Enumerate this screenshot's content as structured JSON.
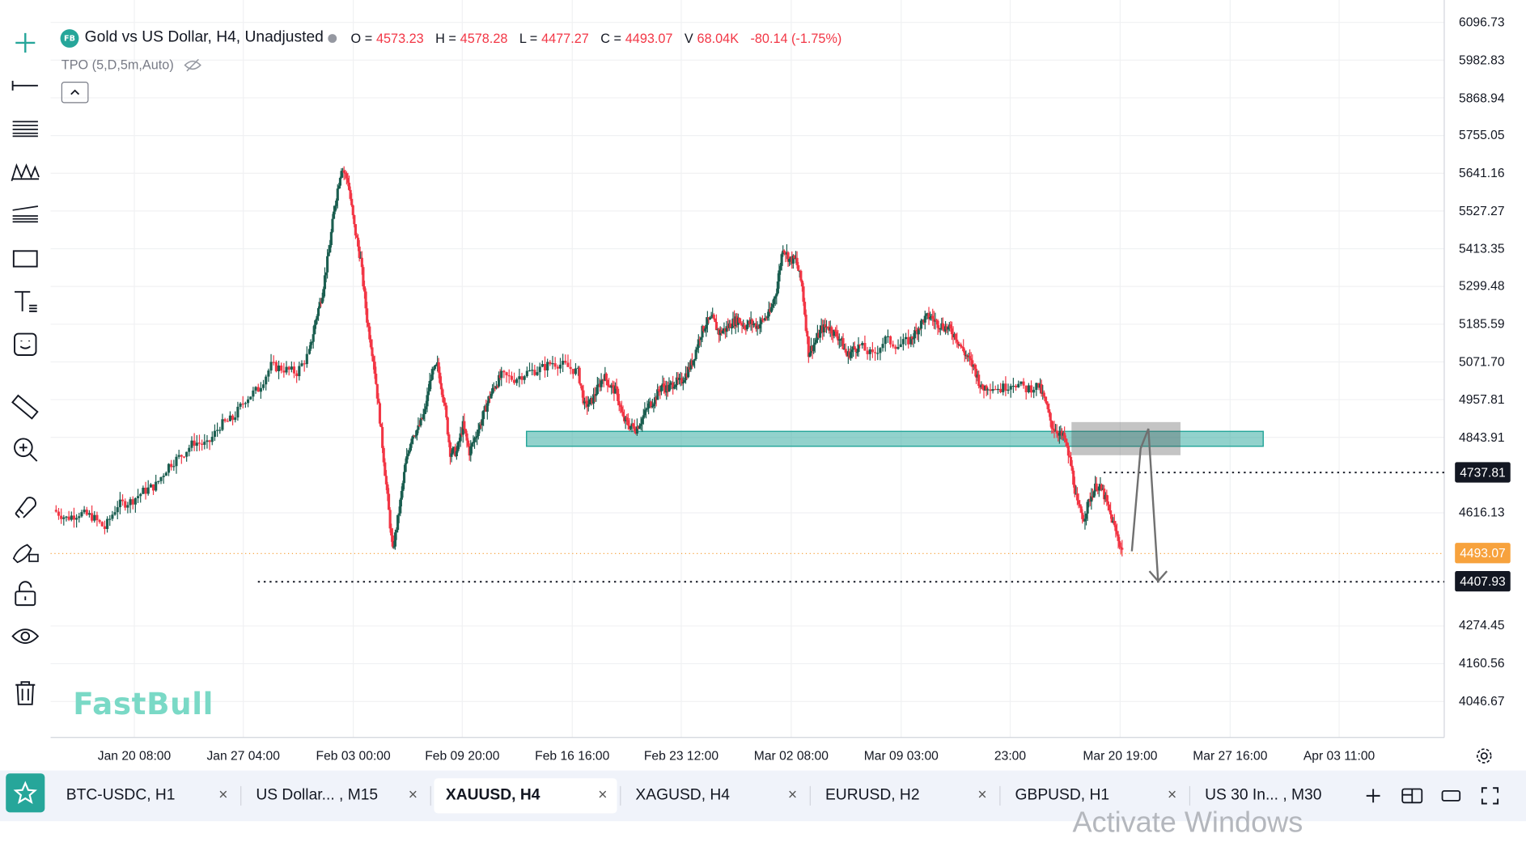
{
  "header": {
    "badge": "FB",
    "title": "Gold vs US Dollar, H4, Unadjusted",
    "ohlc": [
      {
        "key": "O =",
        "value": "4573.23"
      },
      {
        "key": "H =",
        "value": "4578.28"
      },
      {
        "key": "L =",
        "value": "4477.27"
      },
      {
        "key": "C =",
        "value": "4493.07"
      },
      {
        "key": "V",
        "value": "68.04K"
      }
    ],
    "change": "-80.14 (-1.75%)"
  },
  "indicator": {
    "label": "TPO (5,D,5m,Auto)"
  },
  "toolbar_icons": [
    "crosshair-icon",
    "trend-line-icon",
    "fib-lines-icon",
    "pattern-icon",
    "channel-icon",
    "rectangle-icon",
    "text-tool-icon",
    "emoji-icon",
    "ruler-icon",
    "zoom-in-icon",
    "magnet-icon",
    "lock-drawing-icon",
    "lock-icon",
    "eye-icon",
    "trash-icon"
  ],
  "chart_data": {
    "type": "candlestick",
    "symbol": "XAUUSD",
    "timeframe": "H4",
    "price_axis": [
      "6096.73",
      "5982.83",
      "5868.94",
      "5755.05",
      "5641.16",
      "5527.27",
      "5413.35",
      "5299.48",
      "5185.59",
      "5071.70",
      "4957.81",
      "4843.91",
      "4616.13",
      "4274.45",
      "4160.56",
      "4046.67"
    ],
    "ylim": [
      3990,
      6130
    ],
    "time_axis": [
      "Jan 20 08:00",
      "Jan 27 04:00",
      "Feb 03 00:00",
      "Feb 09 20:00",
      "Feb 16 16:00",
      "Feb 23 12:00",
      "Mar 02 08:00",
      "Mar 09 03:00",
      "23:00",
      "Mar 20 19:00",
      "Mar 27 16:00",
      "Apr 03 11:00"
    ],
    "path_close": [
      [
        0,
        4625
      ],
      [
        10,
        4600
      ],
      [
        20,
        4615
      ],
      [
        30,
        4605
      ],
      [
        40,
        4570
      ],
      [
        50,
        4640
      ],
      [
        60,
        4650
      ],
      [
        70,
        4680
      ],
      [
        80,
        4700
      ],
      [
        90,
        4760
      ],
      [
        100,
        4790
      ],
      [
        110,
        4830
      ],
      [
        120,
        4820
      ],
      [
        130,
        4880
      ],
      [
        140,
        4900
      ],
      [
        150,
        4960
      ],
      [
        160,
        4990
      ],
      [
        170,
        5060
      ],
      [
        180,
        5050
      ],
      [
        190,
        5040
      ],
      [
        200,
        5100
      ],
      [
        205,
        5200
      ],
      [
        210,
        5280
      ],
      [
        215,
        5400
      ],
      [
        220,
        5550
      ],
      [
        225,
        5660
      ],
      [
        230,
        5620
      ],
      [
        235,
        5480
      ],
      [
        240,
        5380
      ],
      [
        245,
        5200
      ],
      [
        250,
        5080
      ],
      [
        255,
        4900
      ],
      [
        260,
        4700
      ],
      [
        265,
        4500
      ],
      [
        270,
        4620
      ],
      [
        275,
        4760
      ],
      [
        280,
        4850
      ],
      [
        285,
        4870
      ],
      [
        290,
        4920
      ],
      [
        295,
        5030
      ],
      [
        300,
        5060
      ],
      [
        305,
        4960
      ],
      [
        310,
        4800
      ],
      [
        315,
        4800
      ],
      [
        320,
        4880
      ],
      [
        325,
        4800
      ],
      [
        330,
        4850
      ],
      [
        335,
        4900
      ],
      [
        340,
        4960
      ],
      [
        345,
        5000
      ],
      [
        350,
        5030
      ],
      [
        360,
        5020
      ],
      [
        370,
        5040
      ],
      [
        380,
        5050
      ],
      [
        390,
        5070
      ],
      [
        400,
        5060
      ],
      [
        410,
        5040
      ],
      [
        415,
        4940
      ],
      [
        420,
        4950
      ],
      [
        425,
        4990
      ],
      [
        430,
        5030
      ],
      [
        435,
        5000
      ],
      [
        440,
        4980
      ],
      [
        445,
        4900
      ],
      [
        450,
        4880
      ],
      [
        455,
        4870
      ],
      [
        460,
        4900
      ],
      [
        465,
        4940
      ],
      [
        470,
        4960
      ],
      [
        475,
        5000
      ],
      [
        480,
        4990
      ],
      [
        485,
        5010
      ],
      [
        490,
        5010
      ],
      [
        495,
        5040
      ],
      [
        500,
        5080
      ],
      [
        505,
        5150
      ],
      [
        510,
        5190
      ],
      [
        515,
        5200
      ],
      [
        520,
        5160
      ],
      [
        525,
        5170
      ],
      [
        530,
        5190
      ],
      [
        535,
        5200
      ],
      [
        540,
        5180
      ],
      [
        545,
        5190
      ],
      [
        550,
        5180
      ],
      [
        555,
        5200
      ],
      [
        560,
        5220
      ],
      [
        565,
        5290
      ],
      [
        570,
        5420
      ],
      [
        575,
        5380
      ],
      [
        580,
        5380
      ],
      [
        585,
        5300
      ],
      [
        590,
        5100
      ],
      [
        595,
        5130
      ],
      [
        600,
        5170
      ],
      [
        605,
        5180
      ],
      [
        610,
        5160
      ],
      [
        615,
        5140
      ],
      [
        620,
        5090
      ],
      [
        625,
        5110
      ],
      [
        630,
        5120
      ],
      [
        640,
        5090
      ],
      [
        650,
        5140
      ],
      [
        660,
        5120
      ],
      [
        670,
        5140
      ],
      [
        675,
        5170
      ],
      [
        680,
        5200
      ],
      [
        685,
        5210
      ],
      [
        690,
        5190
      ],
      [
        695,
        5180
      ],
      [
        700,
        5170
      ],
      [
        705,
        5150
      ],
      [
        710,
        5110
      ],
      [
        715,
        5080
      ],
      [
        720,
        5050
      ],
      [
        725,
        4990
      ],
      [
        730,
        5000
      ],
      [
        740,
        4990
      ],
      [
        750,
        5010
      ],
      [
        760,
        4990
      ],
      [
        770,
        5000
      ],
      [
        775,
        4950
      ],
      [
        780,
        4880
      ],
      [
        785,
        4860
      ],
      [
        790,
        4840
      ],
      [
        795,
        4760
      ],
      [
        800,
        4640
      ],
      [
        805,
        4600
      ],
      [
        810,
        4660
      ],
      [
        815,
        4700
      ],
      [
        820,
        4680
      ],
      [
        825,
        4620
      ],
      [
        830,
        4560
      ],
      [
        835,
        4500
      ]
    ],
    "zone": {
      "low": 4817,
      "high": 4862
    },
    "levels": [
      "4737.81",
      "4407.93"
    ],
    "current_price": "4493.07",
    "watermark": "FastBull"
  },
  "tabs": [
    {
      "label": "BTC-USDC, H1",
      "active": false
    },
    {
      "label": "US Dollar... , M15",
      "active": false
    },
    {
      "label": "XAUUSD, H4",
      "active": true
    },
    {
      "label": "XAGUSD, H4",
      "active": false
    },
    {
      "label": "EURUSD, H2",
      "active": false
    },
    {
      "label": "GBPUSD, H1",
      "active": false
    },
    {
      "label": "US 30 In... , M30",
      "active": false
    }
  ],
  "tab_close": "×",
  "os_overlay": "Activate Windows",
  "colors": {
    "up": "#1b5e50",
    "down": "#f23645",
    "zone": "#26a69a",
    "accent": "#26a69a"
  }
}
